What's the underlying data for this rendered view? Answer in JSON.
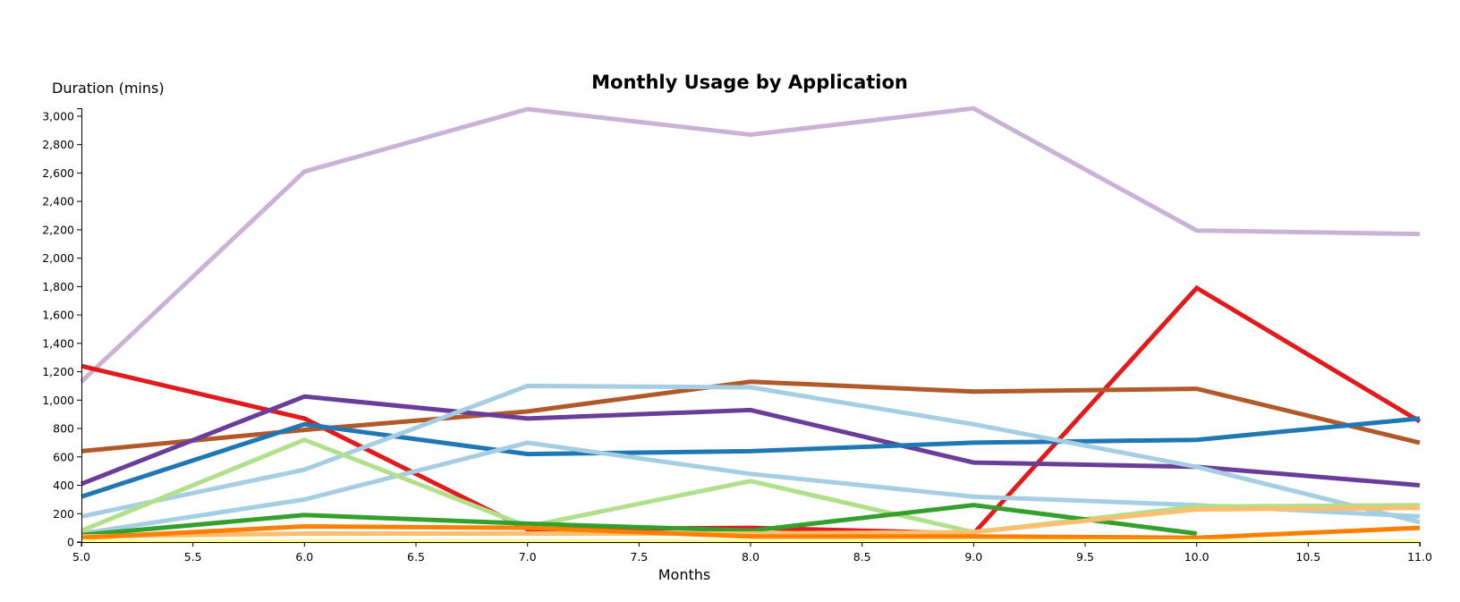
{
  "chart_data": {
    "type": "line",
    "title": "Monthly Usage by Application",
    "xlabel": "Months",
    "ylabel": "Duration (mins)",
    "xlim": [
      5.0,
      11.0
    ],
    "ylim": [
      0,
      3050
    ],
    "x_ticks": [
      "5.0",
      "5.5",
      "6.0",
      "6.5",
      "7.0",
      "7.5",
      "8.0",
      "8.5",
      "9.0",
      "9.5",
      "10.0",
      "10.5",
      "11.0"
    ],
    "y_ticks": [
      "0",
      "200",
      "400",
      "600",
      "800",
      "1,000",
      "1,200",
      "1,400",
      "1,600",
      "1,800",
      "2,000",
      "2,200",
      "2,400",
      "2,600",
      "2,800",
      "3,000"
    ],
    "grid": false,
    "series": [
      {
        "color": "#cab2d6",
        "x": [
          5,
          6,
          7,
          8,
          9,
          10,
          11
        ],
        "values": [
          1130,
          2610,
          3050,
          2870,
          3055,
          2195,
          2170
        ]
      },
      {
        "color": "#e31a1c",
        "x": [
          5,
          6,
          7,
          8,
          9,
          10,
          11
        ],
        "values": [
          1240,
          870,
          90,
          100,
          60,
          1790,
          850
        ]
      },
      {
        "color": "#b15928",
        "x": [
          5,
          6,
          7,
          8,
          9,
          10,
          11
        ],
        "values": [
          640,
          790,
          920,
          1130,
          1060,
          1080,
          700
        ]
      },
      {
        "color": "#6a3d9a",
        "x": [
          5,
          6,
          7,
          8,
          9,
          10,
          11
        ],
        "values": [
          410,
          1025,
          870,
          930,
          560,
          530,
          400
        ]
      },
      {
        "color": "#1f78b4",
        "x": [
          5,
          6,
          7,
          8,
          9,
          10,
          11
        ],
        "values": [
          320,
          830,
          620,
          640,
          700,
          720,
          870
        ]
      },
      {
        "color": "#a6cee3",
        "x": [
          5,
          6,
          7,
          8,
          9,
          10,
          11
        ],
        "values": [
          180,
          510,
          1100,
          1090,
          830,
          530,
          140
        ]
      },
      {
        "color": "#a6cee3",
        "x": [
          5,
          6,
          7,
          8,
          9,
          10,
          11
        ],
        "values": [
          60,
          300,
          700,
          480,
          320,
          260,
          180
        ]
      },
      {
        "color": "#b2df8a",
        "x": [
          5,
          6,
          7,
          8,
          9,
          10,
          11
        ],
        "values": [
          80,
          720,
          110,
          430,
          70,
          250,
          260
        ]
      },
      {
        "color": "#33a02c",
        "x": [
          5,
          6,
          7,
          8,
          9,
          10
        ],
        "values": [
          50,
          190,
          130,
          80,
          260,
          60
        ]
      },
      {
        "color": "#fdbf6f",
        "x": [
          5,
          6,
          7,
          8,
          9,
          10,
          11
        ],
        "values": [
          40,
          60,
          60,
          60,
          70,
          230,
          240
        ]
      },
      {
        "color": "#ff7f00",
        "x": [
          5,
          6,
          7,
          8,
          9,
          10,
          11
        ],
        "values": [
          30,
          110,
          100,
          40,
          40,
          30,
          100
        ]
      },
      {
        "color": "#ffff99",
        "x": [
          5,
          6,
          7,
          8,
          9,
          10,
          11
        ],
        "values": [
          5,
          5,
          5,
          5,
          5,
          5,
          5
        ]
      }
    ]
  }
}
